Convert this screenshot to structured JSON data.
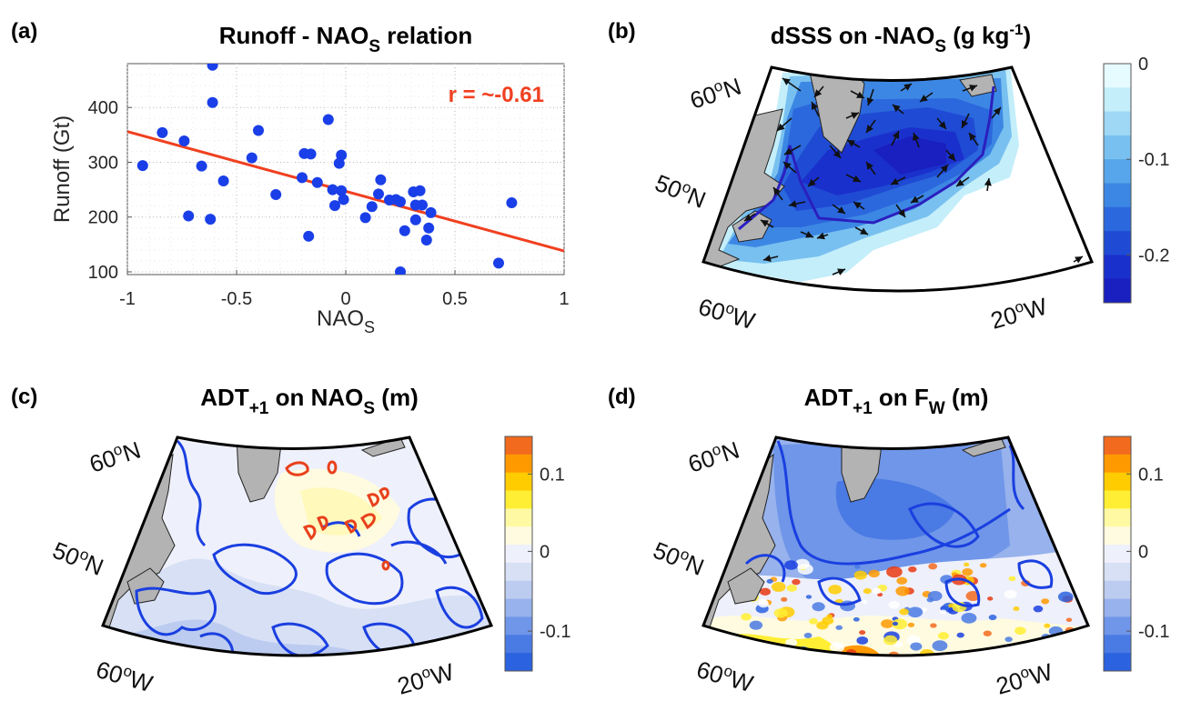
{
  "panels": {
    "a": {
      "label": "(a)",
      "title_main": "Runoff - NAO",
      "title_sub": "S",
      "title_tail": " relation"
    },
    "b": {
      "label": "(b)",
      "title_main": "dSSS on -NAO",
      "title_sub": "S",
      "title_unit": " (g kg",
      "title_sup": "-1",
      "title_close": ")"
    },
    "c": {
      "label": "(c)",
      "title_main": "ADT",
      "title_sub": "+1",
      "title_mid": " on NAO",
      "title_sub2": "S",
      "title_tail": " (m)"
    },
    "d": {
      "label": "(d)",
      "title_main": "ADT",
      "title_sub": "+1",
      "title_mid": " on F",
      "title_sub2": "W",
      "title_tail": " (m)"
    }
  },
  "geo_labels": {
    "lat60": "60",
    "lat50": "50",
    "lon60": "60",
    "lon20": "20",
    "deg": "o",
    "N": "N",
    "W": "W"
  },
  "colorbars": {
    "b": {
      "ticks": [
        "0",
        "-0.1",
        "-0.2"
      ],
      "colors": [
        "#e6fbff",
        "#c3eefa",
        "#9ed8f5",
        "#78c0ef",
        "#57a5ea",
        "#3d87e4",
        "#2b68dd",
        "#1f4bd4",
        "#1a30cc",
        "#1a1fbf"
      ]
    },
    "cd": {
      "ticks": [
        "0.1",
        "0",
        "-0.1"
      ],
      "colors": [
        "#f26a1e",
        "#ff9900",
        "#ffcc00",
        "#ffee33",
        "#fff9a3",
        "#fffbe0",
        "#eef0fb",
        "#d7e0f5",
        "#bccbf0",
        "#97b2ec",
        "#6f96e8",
        "#4a7ae3",
        "#2b62df"
      ]
    }
  },
  "chart_data": [
    {
      "type": "scatter",
      "title": "Runoff - NAOS relation",
      "xlabel": "NAOS",
      "ylabel": "Runoff (Gt)",
      "xlim": [
        -1,
        1
      ],
      "ylim": [
        95,
        480
      ],
      "xticks": [
        "-1",
        "-0.5",
        "0",
        "0.5",
        "1"
      ],
      "yticks": [
        "100",
        "200",
        "300",
        "400"
      ],
      "grid": true,
      "annotation": "r = ~-0.61",
      "fit_line": {
        "x": [
          -1,
          1
        ],
        "y": [
          356,
          138
        ]
      },
      "points": [
        [
          -0.93,
          294
        ],
        [
          -0.84,
          354
        ],
        [
          -0.74,
          339
        ],
        [
          -0.72,
          202
        ],
        [
          -0.66,
          293
        ],
        [
          -0.62,
          196
        ],
        [
          -0.61,
          409
        ],
        [
          -0.61,
          477
        ],
        [
          -0.56,
          266
        ],
        [
          -0.43,
          308
        ],
        [
          -0.4,
          358
        ],
        [
          -0.32,
          241
        ],
        [
          -0.2,
          272
        ],
        [
          -0.19,
          316
        ],
        [
          -0.16,
          315
        ],
        [
          -0.17,
          165
        ],
        [
          -0.13,
          263
        ],
        [
          -0.08,
          378
        ],
        [
          -0.05,
          221
        ],
        [
          -0.06,
          250
        ],
        [
          -0.03,
          298
        ],
        [
          -0.02,
          248
        ],
        [
          -0.02,
          313
        ],
        [
          -0.01,
          232
        ],
        [
          0.09,
          199
        ],
        [
          0.12,
          219
        ],
        [
          0.15,
          242
        ],
        [
          0.16,
          268
        ],
        [
          0.2,
          231
        ],
        [
          0.23,
          232
        ],
        [
          0.25,
          228
        ],
        [
          0.27,
          175
        ],
        [
          0.31,
          246
        ],
        [
          0.32,
          222
        ],
        [
          0.32,
          195
        ],
        [
          0.34,
          248
        ],
        [
          0.35,
          222
        ],
        [
          0.37,
          158
        ],
        [
          0.38,
          180
        ],
        [
          0.39,
          208
        ],
        [
          0.25,
          100
        ],
        [
          0.7,
          116
        ],
        [
          0.76,
          226
        ]
      ]
    }
  ]
}
